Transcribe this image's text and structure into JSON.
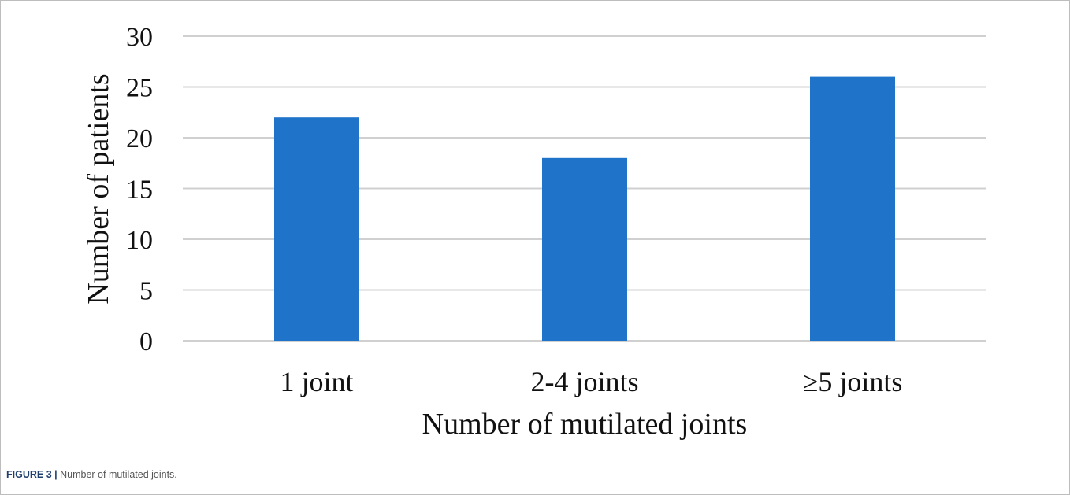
{
  "chart_data": {
    "type": "bar",
    "categories": [
      "1 joint",
      "2-4 joints",
      "≥5 joints"
    ],
    "values": [
      22,
      18,
      26
    ],
    "title": "",
    "xlabel": "Number of mutilated joints",
    "ylabel": "Number of patients",
    "ylim": [
      0,
      30
    ],
    "yticks": [
      0,
      5,
      10,
      15,
      20,
      25,
      30
    ],
    "grid": true,
    "legend": "none",
    "bar_color": "#1f73c9",
    "grid_color": "#d0d0d0"
  },
  "caption": {
    "label": "FIGURE 3 |",
    "text": "Number of mutilated joints."
  }
}
